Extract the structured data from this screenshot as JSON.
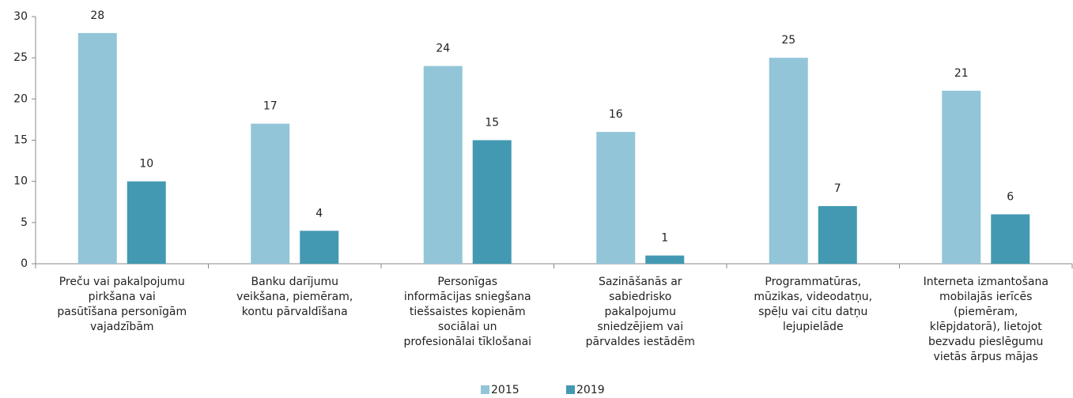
{
  "chart_data": {
    "type": "bar",
    "categories": [
      [
        "Preču vai pakalpojumu",
        "pirkšana vai",
        "pasūtīšana personīgām",
        "vajadzībām"
      ],
      [
        "Banku darījumu",
        "veikšana, piemēram,",
        "kontu pārvaldīšana"
      ],
      [
        "Personīgas",
        "informācijas sniegšana",
        "tiešsaistes kopienām",
        "sociālai un",
        "profesionālai tīklošanai"
      ],
      [
        "Sazināšanās ar",
        "sabiedrisko",
        "pakalpojumu",
        "sniedzējiem vai",
        "pārvaldes iestādēm"
      ],
      [
        "Programmatūras,",
        "mūzikas, videodatņu,",
        "spēļu vai citu datņu",
        "lejupielāde"
      ],
      [
        "Interneta izmantošana",
        "mobilajās ierīcēs",
        "(piemēram,",
        "klēpjdatorā), lietojot",
        "bezvadu pieslēgumu",
        "vietās ārpus mājas"
      ]
    ],
    "series": [
      {
        "name": "2015",
        "color": "#92c5d8",
        "values": [
          28,
          17,
          24,
          16,
          25,
          21
        ]
      },
      {
        "name": "2019",
        "color": "#4399b2",
        "values": [
          10,
          4,
          15,
          1,
          7,
          6
        ]
      }
    ],
    "ylim": [
      0,
      30
    ],
    "yticks": [
      0,
      5,
      10,
      15,
      20,
      25,
      30
    ],
    "legend": "bottom"
  }
}
